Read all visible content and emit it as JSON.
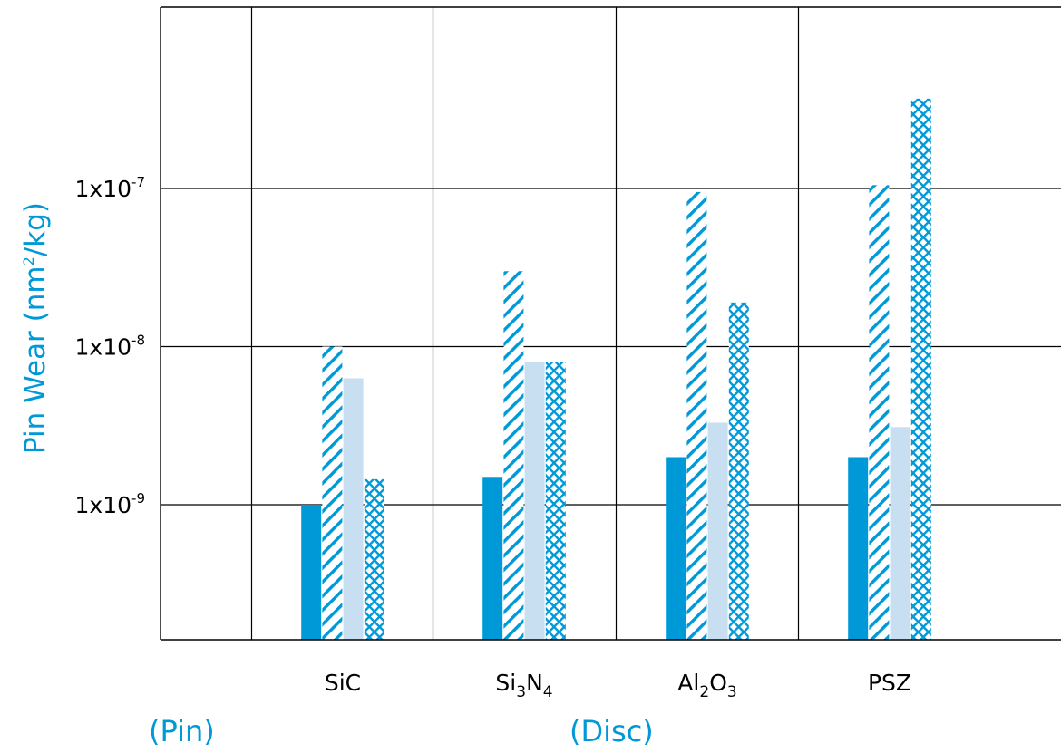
{
  "chart_data": {
    "type": "bar",
    "scale": "log",
    "ylabel": {
      "main": "Pin Wear (nm",
      "sup": "2",
      "tail": "/kg)"
    },
    "y_ticks": [
      {
        "value": 1e-09,
        "base": "1x10",
        "exp": "-9"
      },
      {
        "value": 1e-08,
        "base": "1x10",
        "exp": "-8"
      },
      {
        "value": 1e-07,
        "base": "1x10",
        "exp": "-7"
      }
    ],
    "ylim": [
      1.4e-10,
      1.4e-06
    ],
    "grid": true,
    "categories": [
      {
        "name": "SiC",
        "parts": [
          {
            "t": "SiC"
          }
        ]
      },
      {
        "name": "Si3N4",
        "parts": [
          {
            "t": "Si"
          },
          {
            "t": "3",
            "sub": true
          },
          {
            "t": "N"
          },
          {
            "t": "4",
            "sub": true
          }
        ]
      },
      {
        "name": "Al2O3",
        "parts": [
          {
            "t": "Al"
          },
          {
            "t": "2",
            "sub": true
          },
          {
            "t": "O"
          },
          {
            "t": "3",
            "sub": true
          }
        ]
      },
      {
        "name": "PSZ",
        "parts": [
          {
            "t": "PSZ"
          }
        ]
      }
    ],
    "series": [
      {
        "pattern": "solid",
        "color": "#0099d8",
        "values": [
          1e-09,
          1.5e-09,
          2e-09,
          2e-09
        ]
      },
      {
        "pattern": "hatch",
        "color": "#0099d8",
        "values": [
          1e-08,
          3e-08,
          9.5e-08,
          1.05e-07
        ]
      },
      {
        "pattern": "light",
        "color": "#c8dff2",
        "values": [
          6.3e-09,
          8e-09,
          3.3e-09,
          3.1e-09
        ]
      },
      {
        "pattern": "crosshatch",
        "color": "#0099d8",
        "values": [
          1.45e-09,
          8e-09,
          1.9e-08,
          3.7e-07
        ]
      }
    ],
    "bottom_labels": {
      "pin": "(Pin)",
      "disc": "(Disc)"
    },
    "colors": {
      "accent": "#0099d8",
      "light": "#c8dff2",
      "grid": "#000000"
    }
  }
}
